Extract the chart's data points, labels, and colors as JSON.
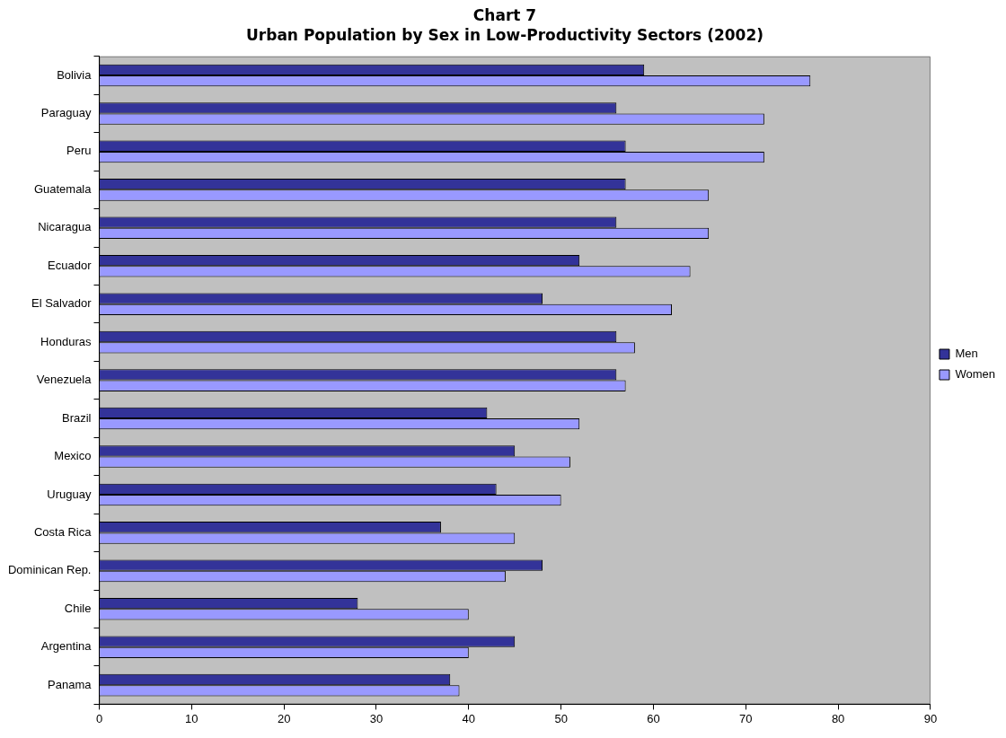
{
  "chart_data": {
    "type": "bar",
    "orientation": "horizontal",
    "title": "Chart 7",
    "subtitle": "Urban Population by Sex in Low-Productivity Sectors (2002)",
    "categories": [
      "Bolivia",
      "Paraguay",
      "Peru",
      "Guatemala",
      "Nicaragua",
      "Ecuador",
      "El Salvador",
      "Honduras",
      "Venezuela",
      "Brazil",
      "Mexico",
      "Uruguay",
      "Costa Rica",
      "Dominican Rep.",
      "Chile",
      "Argentina",
      "Panama"
    ],
    "series": [
      {
        "name": "Men",
        "color": "#333399",
        "values": [
          59,
          56,
          57,
          57,
          56,
          52,
          48,
          56,
          56,
          42,
          45,
          43,
          37,
          48,
          28,
          45,
          38
        ]
      },
      {
        "name": "Women",
        "color": "#9999ff",
        "values": [
          77,
          72,
          72,
          66,
          66,
          64,
          62,
          58,
          57,
          52,
          51,
          50,
          45,
          44,
          40,
          40,
          39
        ]
      }
    ],
    "xlim": [
      0,
      90
    ],
    "xticks": [
      0,
      10,
      20,
      30,
      40,
      50,
      60,
      70,
      80,
      90
    ],
    "grid": false,
    "legend": "right"
  }
}
